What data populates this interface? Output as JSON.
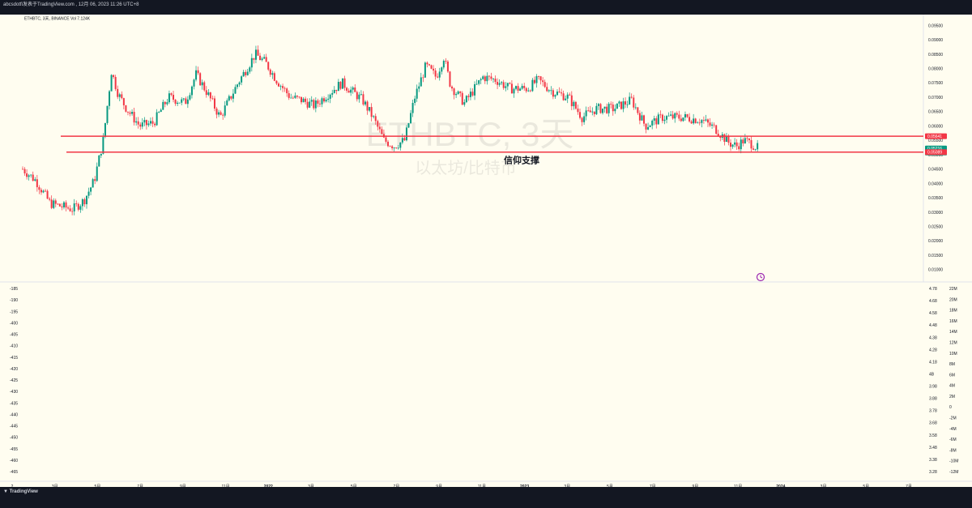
{
  "header": {
    "caption": "abcsdotfi发表于TradingView.com , 12月 06, 2023 11:26 UTC+8"
  },
  "legend": {
    "symbol_line": "ETHBTC, 3天, BINANCE  Vol 7.124K"
  },
  "watermark": {
    "title": "ETHBTC, 3天",
    "subtitle": "以太坊/比特币"
  },
  "annotation": {
    "label": "信仰支撑"
  },
  "footer": {
    "logo_text": "TradingView"
  },
  "price_axis": {
    "labels": [
      "0.09500",
      "0.09000",
      "0.08500",
      "0.08000",
      "0.07500",
      "0.07000",
      "0.06500",
      "0.06000",
      "0.05500",
      "0.05000",
      "0.04500",
      "0.04000",
      "0.03500",
      "0.03000",
      "0.02500",
      "0.02000",
      "0.01500",
      "0.01000"
    ],
    "badges": [
      {
        "value": "0.05641",
        "color": "#f23645"
      },
      {
        "value": "0.05216",
        "sub": "2d 23h",
        "color": "#089981"
      },
      {
        "value": "0.05089",
        "color": "#f23645"
      }
    ]
  },
  "indicator_left_axis": {
    "labels": [
      "-185",
      "-190",
      "-195",
      "-400",
      "-405",
      "-410",
      "-415",
      "-420",
      "-425",
      "-430",
      "-435",
      "-440",
      "-445",
      "-450",
      "-455",
      "-460",
      "-465"
    ]
  },
  "indicator_mid_axis": {
    "labels": [
      "4.78",
      "4.68",
      "4.58",
      "4.48",
      "4.38",
      "4.28",
      "4.18",
      "4B",
      "3.98",
      "3.88",
      "3.78",
      "3.68",
      "3.58",
      "3.48",
      "3.38",
      "3.28"
    ]
  },
  "indicator_right_axis": {
    "labels": [
      "22M",
      "20M",
      "18M",
      "16M",
      "14M",
      "12M",
      "10M",
      "8M",
      "6M",
      "4M",
      "2M",
      "0",
      "-2M",
      "-4M",
      "-6M",
      "-8M",
      "-10M",
      "-12M"
    ]
  },
  "time_axis": {
    "labels": [
      "2",
      "3月",
      "5月",
      "7月",
      "9月",
      "11月",
      "2022",
      "3月",
      "5月",
      "7月",
      "9月",
      "11月",
      "2023",
      "3月",
      "5月",
      "7月",
      "9月",
      "11月",
      "2024",
      "3月",
      "5月",
      "7月"
    ]
  },
  "chart_data": {
    "type": "candlestick",
    "title": "ETHBTC, 3天",
    "subtitle": "以太坊/比特币",
    "exchange": "BINANCE",
    "ylim": [
      0.0085,
      0.0965
    ],
    "colors": {
      "up": "#089981",
      "down": "#f23645",
      "level": "#f23645",
      "background": "#fffdf0"
    },
    "levels": [
      {
        "price": 0.05641
      },
      {
        "price": 0.05089,
        "label": "信仰支撑"
      }
    ],
    "last_price": 0.05216,
    "close_path": [
      [
        "2021-01-01",
        0.045
      ],
      [
        "2021-01-20",
        0.041
      ],
      [
        "2021-02-10",
        0.033
      ],
      [
        "2021-03-15",
        0.031
      ],
      [
        "2021-03-31",
        0.034
      ],
      [
        "2021-04-15",
        0.041
      ],
      [
        "2021-04-28",
        0.055
      ],
      [
        "2021-05-10",
        0.079
      ],
      [
        "2021-05-20",
        0.071
      ],
      [
        "2021-06-01",
        0.066
      ],
      [
        "2021-06-20",
        0.06
      ],
      [
        "2021-07-10",
        0.061
      ],
      [
        "2021-08-01",
        0.07
      ],
      [
        "2021-08-25",
        0.068
      ],
      [
        "2021-09-10",
        0.078
      ],
      [
        "2021-09-25",
        0.072
      ],
      [
        "2021-10-15",
        0.063
      ],
      [
        "2021-11-10",
        0.075
      ],
      [
        "2021-12-05",
        0.085
      ],
      [
        "2021-12-20",
        0.082
      ],
      [
        "2022-01-05",
        0.076
      ],
      [
        "2022-01-25",
        0.07
      ],
      [
        "2022-02-10",
        0.069
      ],
      [
        "2022-03-01",
        0.067
      ],
      [
        "2022-03-20",
        0.071
      ],
      [
        "2022-04-10",
        0.075
      ],
      [
        "2022-05-10",
        0.069
      ],
      [
        "2022-05-25",
        0.063
      ],
      [
        "2022-06-10",
        0.055
      ],
      [
        "2022-06-25",
        0.053
      ],
      [
        "2022-07-10",
        0.055
      ],
      [
        "2022-07-25",
        0.07
      ],
      [
        "2022-08-10",
        0.081
      ],
      [
        "2022-08-25",
        0.077
      ],
      [
        "2022-09-05",
        0.084
      ],
      [
        "2022-09-15",
        0.074
      ],
      [
        "2022-10-05",
        0.068
      ],
      [
        "2022-11-01",
        0.077
      ],
      [
        "2022-11-20",
        0.076
      ],
      [
        "2022-12-10",
        0.073
      ],
      [
        "2023-01-05",
        0.073
      ],
      [
        "2023-01-20",
        0.076
      ],
      [
        "2023-02-10",
        0.072
      ],
      [
        "2023-03-05",
        0.07
      ],
      [
        "2023-03-25",
        0.063
      ],
      [
        "2023-04-15",
        0.066
      ],
      [
        "2023-05-10",
        0.066
      ],
      [
        "2023-06-05",
        0.069
      ],
      [
        "2023-06-25",
        0.06
      ],
      [
        "2023-07-20",
        0.063
      ],
      [
        "2023-08-20",
        0.063
      ],
      [
        "2023-09-15",
        0.062
      ],
      [
        "2023-10-05",
        0.059
      ],
      [
        "2023-10-25",
        0.054
      ],
      [
        "2023-11-05",
        0.053
      ],
      [
        "2023-11-15",
        0.055
      ],
      [
        "2023-11-25",
        0.054
      ],
      [
        "2023-12-06",
        0.05216
      ]
    ]
  }
}
